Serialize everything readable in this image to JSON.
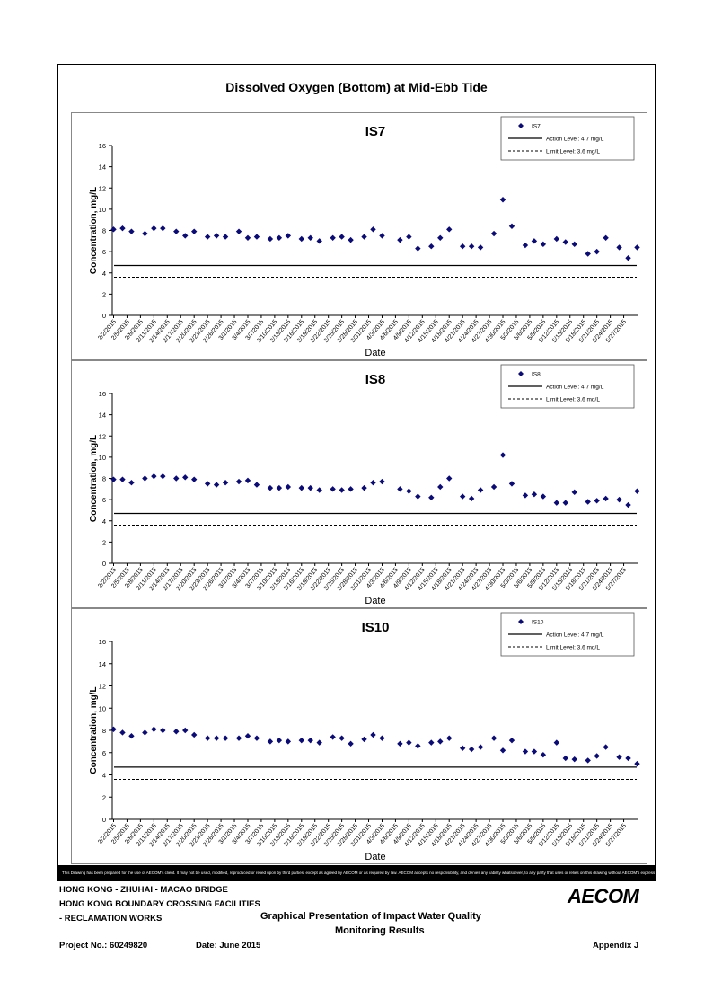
{
  "page": {
    "title": "Dissolved Oxygen (Bottom) at Mid-Ebb Tide",
    "disclaimer": "This Drawing has been prepared for the use of AECOM's client. It may not be used, modified, reproduced or relied upon by third parties, except as agreed by AECOM or as required by law. AECOM accepts no responsibility, and denies any liability whatsoever, to any party that uses or relies on this drawing without AECOM's express written consent."
  },
  "title_block": {
    "line1": "HONG KONG - ZHUHAI - MACAO BRIDGE",
    "line2": "HONG KONG BOUNDARY CROSSING FACILITIES",
    "line3": "- RECLAMATION WORKS",
    "heading_line1": "Graphical Presentation of Impact Water Quality",
    "heading_line2": "Monitoring Results",
    "project_no": "Project No.: 60249820",
    "date": "Date: June 2015",
    "appendix": "Appendix J",
    "logo": "AECOM"
  },
  "chart_data": [
    {
      "type": "scatter",
      "title": "IS7",
      "xlabel": "Date",
      "ylabel": "Concentration, mg/L",
      "ylim": [
        0,
        16
      ],
      "y_ticks": [
        0,
        2,
        4,
        6,
        8,
        10,
        12,
        14,
        16
      ],
      "x_ticks": [
        "2/2/2015",
        "2/5/2015",
        "2/8/2015",
        "2/11/2015",
        "2/14/2015",
        "2/17/2015",
        "2/20/2015",
        "2/23/2015",
        "2/26/2015",
        "3/1/2015",
        "3/4/2015",
        "3/7/2015",
        "3/10/2015",
        "3/13/2015",
        "3/16/2015",
        "3/19/2015",
        "3/22/2015",
        "3/25/2015",
        "3/28/2015",
        "3/31/2015",
        "4/3/2015",
        "4/6/2015",
        "4/9/2015",
        "4/12/2015",
        "4/15/2015",
        "4/18/2015",
        "4/21/2015",
        "4/24/2015",
        "4/27/2015",
        "4/30/2015",
        "5/3/2015",
        "5/6/2015",
        "5/9/2015",
        "5/12/2015",
        "5/15/2015",
        "5/18/2015",
        "5/21/2015",
        "5/24/2015",
        "5/27/2015"
      ],
      "legend_position": "top-right",
      "legend": [
        "IS7",
        "Action Level: 4.7 mg/L",
        "Limit Level: 3.6 mg/L"
      ],
      "action_level": 4.7,
      "limit_level": 3.6,
      "series": [
        {
          "name": "IS7",
          "x": [
            "2/2/2015",
            "2/4/2015",
            "2/6/2015",
            "2/9/2015",
            "2/11/2015",
            "2/13/2015",
            "2/16/2015",
            "2/18/2015",
            "2/20/2015",
            "2/23/2015",
            "2/25/2015",
            "2/27/2015",
            "3/2/2015",
            "3/4/2015",
            "3/6/2015",
            "3/9/2015",
            "3/11/2015",
            "3/13/2015",
            "3/16/2015",
            "3/18/2015",
            "3/20/2015",
            "3/23/2015",
            "3/25/2015",
            "3/27/2015",
            "3/30/2015",
            "4/1/2015",
            "4/3/2015",
            "4/7/2015",
            "4/9/2015",
            "4/11/2015",
            "4/14/2015",
            "4/16/2015",
            "4/18/2015",
            "4/21/2015",
            "4/23/2015",
            "4/25/2015",
            "4/28/2015",
            "4/30/2015",
            "5/2/2015",
            "5/5/2015",
            "5/7/2015",
            "5/9/2015",
            "5/12/2015",
            "5/14/2015",
            "5/16/2015",
            "5/19/2015",
            "5/21/2015",
            "5/23/2015",
            "5/26/2015",
            "5/28/2015",
            "5/30/2015"
          ],
          "y": [
            8.1,
            8.2,
            7.9,
            7.7,
            8.2,
            8.2,
            7.9,
            7.5,
            7.9,
            7.4,
            7.5,
            7.4,
            7.9,
            7.3,
            7.4,
            7.2,
            7.3,
            7.5,
            7.2,
            7.3,
            7.0,
            7.3,
            7.4,
            7.1,
            7.4,
            8.1,
            7.5,
            7.1,
            7.4,
            6.3,
            6.5,
            7.3,
            8.1,
            6.5,
            6.5,
            6.4,
            7.7,
            10.9,
            8.4,
            6.6,
            7.0,
            6.7,
            7.2,
            6.9,
            6.7,
            5.8,
            6.0,
            7.3,
            6.4,
            5.4,
            6.4
          ]
        }
      ]
    },
    {
      "type": "scatter",
      "title": "IS8",
      "xlabel": "Date",
      "ylabel": "Concentration, mg/L",
      "ylim": [
        0,
        16
      ],
      "y_ticks": [
        0,
        2,
        4,
        6,
        8,
        10,
        12,
        14,
        16
      ],
      "x_ticks": [
        "2/2/2015",
        "2/5/2015",
        "2/8/2015",
        "2/11/2015",
        "2/14/2015",
        "2/17/2015",
        "2/20/2015",
        "2/23/2015",
        "2/26/2015",
        "3/1/2015",
        "3/4/2015",
        "3/7/2015",
        "3/10/2015",
        "3/13/2015",
        "3/16/2015",
        "3/19/2015",
        "3/22/2015",
        "3/25/2015",
        "3/28/2015",
        "3/31/2015",
        "4/3/2015",
        "4/6/2015",
        "4/9/2015",
        "4/12/2015",
        "4/15/2015",
        "4/18/2015",
        "4/21/2015",
        "4/24/2015",
        "4/27/2015",
        "4/30/2015",
        "5/3/2015",
        "5/6/2015",
        "5/9/2015",
        "5/12/2015",
        "5/15/2015",
        "5/18/2015",
        "5/21/2015",
        "5/24/2015",
        "5/27/2015"
      ],
      "legend_position": "top-right",
      "legend": [
        "IS8",
        "Action Level: 4.7 mg/L",
        "Limit Level: 3.6 mg/L"
      ],
      "action_level": 4.7,
      "limit_level": 3.6,
      "series": [
        {
          "name": "IS8",
          "x": [
            "2/2/2015",
            "2/4/2015",
            "2/6/2015",
            "2/9/2015",
            "2/11/2015",
            "2/13/2015",
            "2/16/2015",
            "2/18/2015",
            "2/20/2015",
            "2/23/2015",
            "2/25/2015",
            "2/27/2015",
            "3/2/2015",
            "3/4/2015",
            "3/6/2015",
            "3/9/2015",
            "3/11/2015",
            "3/13/2015",
            "3/16/2015",
            "3/18/2015",
            "3/20/2015",
            "3/23/2015",
            "3/25/2015",
            "3/27/2015",
            "3/30/2015",
            "4/1/2015",
            "4/3/2015",
            "4/7/2015",
            "4/9/2015",
            "4/11/2015",
            "4/14/2015",
            "4/16/2015",
            "4/18/2015",
            "4/21/2015",
            "4/23/2015",
            "4/25/2015",
            "4/28/2015",
            "4/30/2015",
            "5/2/2015",
            "5/5/2015",
            "5/7/2015",
            "5/9/2015",
            "5/12/2015",
            "5/14/2015",
            "5/16/2015",
            "5/19/2015",
            "5/21/2015",
            "5/23/2015",
            "5/26/2015",
            "5/28/2015",
            "5/30/2015"
          ],
          "y": [
            7.9,
            7.9,
            7.6,
            8.0,
            8.2,
            8.2,
            8.0,
            8.1,
            7.9,
            7.5,
            7.4,
            7.6,
            7.7,
            7.8,
            7.4,
            7.1,
            7.1,
            7.2,
            7.1,
            7.1,
            6.9,
            7.0,
            6.9,
            7.0,
            7.1,
            7.6,
            7.7,
            7.0,
            6.8,
            6.3,
            6.2,
            7.2,
            8.0,
            6.3,
            6.1,
            6.9,
            7.2,
            10.2,
            7.5,
            6.4,
            6.5,
            6.3,
            5.7,
            5.7,
            6.7,
            5.8,
            5.9,
            6.1,
            6.0,
            5.5,
            6.8
          ]
        }
      ]
    },
    {
      "type": "scatter",
      "title": "IS10",
      "xlabel": "Date",
      "ylabel": "Concentration, mg/L",
      "ylim": [
        0,
        16
      ],
      "y_ticks": [
        0,
        2,
        4,
        6,
        8,
        10,
        12,
        14,
        16
      ],
      "x_ticks": [
        "2/2/2015",
        "2/5/2015",
        "2/8/2015",
        "2/11/2015",
        "2/14/2015",
        "2/17/2015",
        "2/20/2015",
        "2/23/2015",
        "2/26/2015",
        "3/1/2015",
        "3/4/2015",
        "3/7/2015",
        "3/10/2015",
        "3/13/2015",
        "3/16/2015",
        "3/19/2015",
        "3/22/2015",
        "3/25/2015",
        "3/28/2015",
        "3/31/2015",
        "4/3/2015",
        "4/6/2015",
        "4/9/2015",
        "4/12/2015",
        "4/15/2015",
        "4/18/2015",
        "4/21/2015",
        "4/24/2015",
        "4/27/2015",
        "4/30/2015",
        "5/3/2015",
        "5/6/2015",
        "5/9/2015",
        "5/12/2015",
        "5/15/2015",
        "5/18/2015",
        "5/21/2015",
        "5/24/2015",
        "5/27/2015"
      ],
      "legend_position": "top-right",
      "legend": [
        "IS10",
        "Action Level: 4.7 mg/L",
        "Limit Level: 3.6 mg/L"
      ],
      "action_level": 4.7,
      "limit_level": 3.6,
      "series": [
        {
          "name": "IS10",
          "x": [
            "2/2/2015",
            "2/4/2015",
            "2/6/2015",
            "2/9/2015",
            "2/11/2015",
            "2/13/2015",
            "2/16/2015",
            "2/18/2015",
            "2/20/2015",
            "2/23/2015",
            "2/25/2015",
            "2/27/2015",
            "3/2/2015",
            "3/4/2015",
            "3/6/2015",
            "3/9/2015",
            "3/11/2015",
            "3/13/2015",
            "3/16/2015",
            "3/18/2015",
            "3/20/2015",
            "3/23/2015",
            "3/25/2015",
            "3/27/2015",
            "3/30/2015",
            "4/1/2015",
            "4/3/2015",
            "4/7/2015",
            "4/9/2015",
            "4/11/2015",
            "4/14/2015",
            "4/16/2015",
            "4/18/2015",
            "4/21/2015",
            "4/23/2015",
            "4/25/2015",
            "4/28/2015",
            "4/30/2015",
            "5/2/2015",
            "5/5/2015",
            "5/7/2015",
            "5/9/2015",
            "5/12/2015",
            "5/14/2015",
            "5/16/2015",
            "5/19/2015",
            "5/21/2015",
            "5/23/2015",
            "5/26/2015",
            "5/28/2015",
            "5/30/2015"
          ],
          "y": [
            8.1,
            7.8,
            7.5,
            7.8,
            8.1,
            8.0,
            7.9,
            8.0,
            7.6,
            7.3,
            7.3,
            7.3,
            7.3,
            7.5,
            7.3,
            7.0,
            7.1,
            7.0,
            7.1,
            7.1,
            6.9,
            7.4,
            7.3,
            6.8,
            7.2,
            7.6,
            7.3,
            6.8,
            6.9,
            6.6,
            6.9,
            7.0,
            7.3,
            6.4,
            6.3,
            6.5,
            7.3,
            6.2,
            7.1,
            6.1,
            6.1,
            5.8,
            6.9,
            5.5,
            5.4,
            5.3,
            5.7,
            6.5,
            5.6,
            5.5,
            5.0
          ]
        }
      ]
    }
  ]
}
